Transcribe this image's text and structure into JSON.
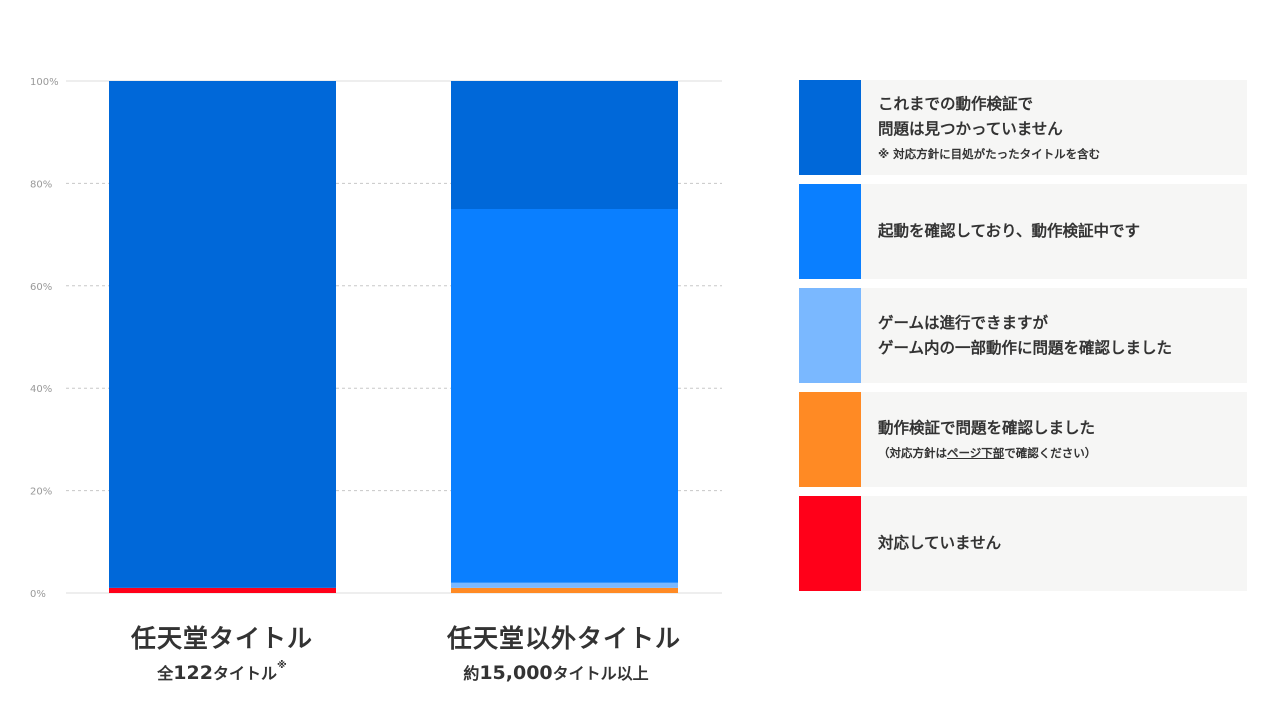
{
  "chart_data": {
    "type": "bar",
    "stacked": true,
    "categories": [
      "任天堂タイトル",
      "任天堂以外タイトル"
    ],
    "ylim": [
      0,
      100
    ],
    "yticks": [
      0,
      20,
      40,
      60,
      80,
      100
    ],
    "ytick_suffix": "%",
    "grid": true,
    "legend_position": "right",
    "series": [
      {
        "name": "対応していません",
        "color": "#ff0019",
        "values": [
          1,
          0
        ]
      },
      {
        "name": "動作検証で問題を確認しました",
        "color": "#ff8a24",
        "values": [
          0,
          1
        ]
      },
      {
        "name": "ゲームは進行できますがゲーム内の一部動作に問題を確認しました",
        "color": "#7ab8ff",
        "values": [
          0,
          1
        ]
      },
      {
        "name": "起動を確認しており、動作検証中です",
        "color": "#0a7fff",
        "values": [
          0,
          73
        ]
      },
      {
        "name": "これまでの動作検証で問題は見つかっていません",
        "color": "#0068d9",
        "values": [
          99,
          25
        ]
      }
    ],
    "bars": [
      {
        "title": "任天堂タイトル",
        "sub_pre": "全",
        "sub_num": "122",
        "sub_post": "タイトル",
        "sub_mark": "※"
      },
      {
        "title": "任天堂以外タイトル",
        "sub_pre": "約",
        "sub_num": "15,000",
        "sub_post": "タイトル以上",
        "sub_mark": ""
      }
    ]
  },
  "legend": [
    {
      "color": "#0068d9",
      "line1": "これまでの動作検証で",
      "line2": "問題は見つかっていません",
      "sub": "※ 対応方針に目処がたったタイトルを含む",
      "sub_pre": "",
      "sub_link": "",
      "sub_post": ""
    },
    {
      "color": "#0a7fff",
      "line1": "起動を確認しており、動作検証中です",
      "line2": "",
      "sub": "",
      "sub_pre": "",
      "sub_link": "",
      "sub_post": ""
    },
    {
      "color": "#7ab8ff",
      "line1": "ゲームは進行できますが",
      "line2": "ゲーム内の一部動作に問題を確認しました",
      "sub": "",
      "sub_pre": "",
      "sub_link": "",
      "sub_post": ""
    },
    {
      "color": "#ff8a24",
      "line1": "動作検証で問題を確認しました",
      "line2": "",
      "sub": "",
      "sub_pre": "（対応方針は",
      "sub_link": "ページ下部",
      "sub_post": "で確認ください）"
    },
    {
      "color": "#ff0019",
      "line1": "対応していません",
      "line2": "",
      "sub": "",
      "sub_pre": "",
      "sub_link": "",
      "sub_post": ""
    }
  ]
}
